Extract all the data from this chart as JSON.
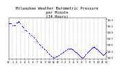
{
  "title": "Milwaukee Weather Barometric Pressure\nper Minute\n(24 Hours)",
  "title_fontsize": 4.0,
  "bg_color": "#ffffff",
  "plot_bg_color": "#ffffff",
  "dot_color": "#0000ff",
  "dot_size": 0.8,
  "xlim": [
    0,
    1440
  ],
  "ylim": [
    29.05,
    30.35
  ],
  "ytick_values": [
    29.1,
    29.3,
    29.5,
    29.7,
    29.9,
    30.1,
    30.3
  ],
  "xtick_values": [
    0,
    60,
    120,
    180,
    240,
    300,
    360,
    420,
    480,
    540,
    600,
    660,
    720,
    780,
    840,
    900,
    960,
    1020,
    1080,
    1140,
    1200,
    1260,
    1320,
    1380,
    1440
  ],
  "xtick_labels": [
    "12",
    "1",
    "2",
    "3",
    "4",
    "5",
    "6",
    "7",
    "8",
    "9",
    "10",
    "11",
    "12",
    "1",
    "2",
    "3",
    "4",
    "5",
    "6",
    "7",
    "8",
    "9",
    "10",
    "11",
    "12"
  ],
  "grid_color": "#aaaaaa",
  "grid_style": "--",
  "grid_linewidth": 0.3,
  "tick_fontsize": 2.8,
  "data_points": [
    [
      0,
      30.18
    ],
    [
      5,
      30.18
    ],
    [
      10,
      30.17
    ],
    [
      15,
      30.18
    ],
    [
      30,
      30.17
    ],
    [
      40,
      30.17
    ],
    [
      60,
      30.12
    ],
    [
      80,
      30.11
    ],
    [
      90,
      30.11
    ],
    [
      100,
      30.11
    ],
    [
      120,
      30.19
    ],
    [
      125,
      30.2
    ],
    [
      130,
      30.21
    ],
    [
      140,
      30.22
    ],
    [
      145,
      30.23
    ],
    [
      150,
      30.24
    ],
    [
      155,
      30.23
    ],
    [
      170,
      30.17
    ],
    [
      200,
      30.09
    ],
    [
      210,
      30.08
    ],
    [
      220,
      30.05
    ],
    [
      240,
      29.97
    ],
    [
      255,
      29.95
    ],
    [
      270,
      29.94
    ],
    [
      300,
      29.88
    ],
    [
      310,
      29.85
    ],
    [
      330,
      29.81
    ],
    [
      350,
      29.78
    ],
    [
      365,
      29.74
    ],
    [
      380,
      29.72
    ],
    [
      395,
      29.68
    ],
    [
      405,
      29.64
    ],
    [
      420,
      29.61
    ],
    [
      435,
      29.57
    ],
    [
      450,
      29.53
    ],
    [
      460,
      29.5
    ],
    [
      475,
      29.47
    ],
    [
      490,
      29.44
    ],
    [
      505,
      29.41
    ],
    [
      520,
      29.38
    ],
    [
      535,
      29.35
    ],
    [
      550,
      29.32
    ],
    [
      560,
      29.28
    ],
    [
      575,
      29.25
    ],
    [
      590,
      29.22
    ],
    [
      605,
      29.19
    ],
    [
      620,
      29.16
    ],
    [
      635,
      29.13
    ],
    [
      650,
      29.1
    ],
    [
      660,
      29.09
    ],
    [
      675,
      29.08
    ],
    [
      690,
      29.1
    ],
    [
      700,
      29.12
    ],
    [
      715,
      29.13
    ],
    [
      730,
      29.15
    ],
    [
      745,
      29.17
    ],
    [
      760,
      29.19
    ],
    [
      775,
      29.21
    ],
    [
      790,
      29.23
    ],
    [
      805,
      29.26
    ],
    [
      820,
      29.29
    ],
    [
      835,
      29.31
    ],
    [
      850,
      29.33
    ],
    [
      870,
      29.35
    ],
    [
      880,
      29.36
    ],
    [
      895,
      29.37
    ],
    [
      900,
      29.37
    ],
    [
      910,
      29.38
    ],
    [
      920,
      29.37
    ],
    [
      930,
      29.36
    ],
    [
      940,
      29.35
    ],
    [
      950,
      29.34
    ],
    [
      960,
      29.32
    ],
    [
      970,
      29.3
    ],
    [
      980,
      29.29
    ],
    [
      990,
      29.27
    ],
    [
      1000,
      29.25
    ],
    [
      1010,
      29.23
    ],
    [
      1020,
      29.21
    ],
    [
      1030,
      29.19
    ],
    [
      1040,
      29.17
    ],
    [
      1050,
      29.15
    ],
    [
      1060,
      29.13
    ],
    [
      1070,
      29.11
    ],
    [
      1080,
      29.09
    ],
    [
      1090,
      29.08
    ],
    [
      1100,
      29.09
    ],
    [
      1110,
      29.11
    ],
    [
      1120,
      29.14
    ],
    [
      1130,
      29.17
    ],
    [
      1140,
      29.2
    ],
    [
      1155,
      29.23
    ],
    [
      1165,
      29.25
    ],
    [
      1180,
      29.28
    ],
    [
      1190,
      29.3
    ],
    [
      1200,
      29.33
    ],
    [
      1210,
      29.35
    ],
    [
      1220,
      29.38
    ],
    [
      1230,
      29.39
    ],
    [
      1235,
      29.4
    ],
    [
      1240,
      29.41
    ],
    [
      1250,
      29.42
    ],
    [
      1260,
      29.43
    ],
    [
      1265,
      29.42
    ],
    [
      1270,
      29.41
    ],
    [
      1280,
      29.39
    ],
    [
      1290,
      29.37
    ],
    [
      1300,
      29.36
    ],
    [
      1310,
      29.34
    ],
    [
      1320,
      29.32
    ],
    [
      1330,
      29.3
    ],
    [
      1340,
      29.28
    ],
    [
      1350,
      29.25
    ],
    [
      1360,
      29.23
    ],
    [
      1370,
      29.21
    ],
    [
      1380,
      29.19
    ],
    [
      1390,
      29.18
    ],
    [
      1400,
      29.18
    ],
    [
      1410,
      29.19
    ],
    [
      1420,
      29.22
    ],
    [
      1430,
      29.24
    ],
    [
      1440,
      29.26
    ]
  ]
}
